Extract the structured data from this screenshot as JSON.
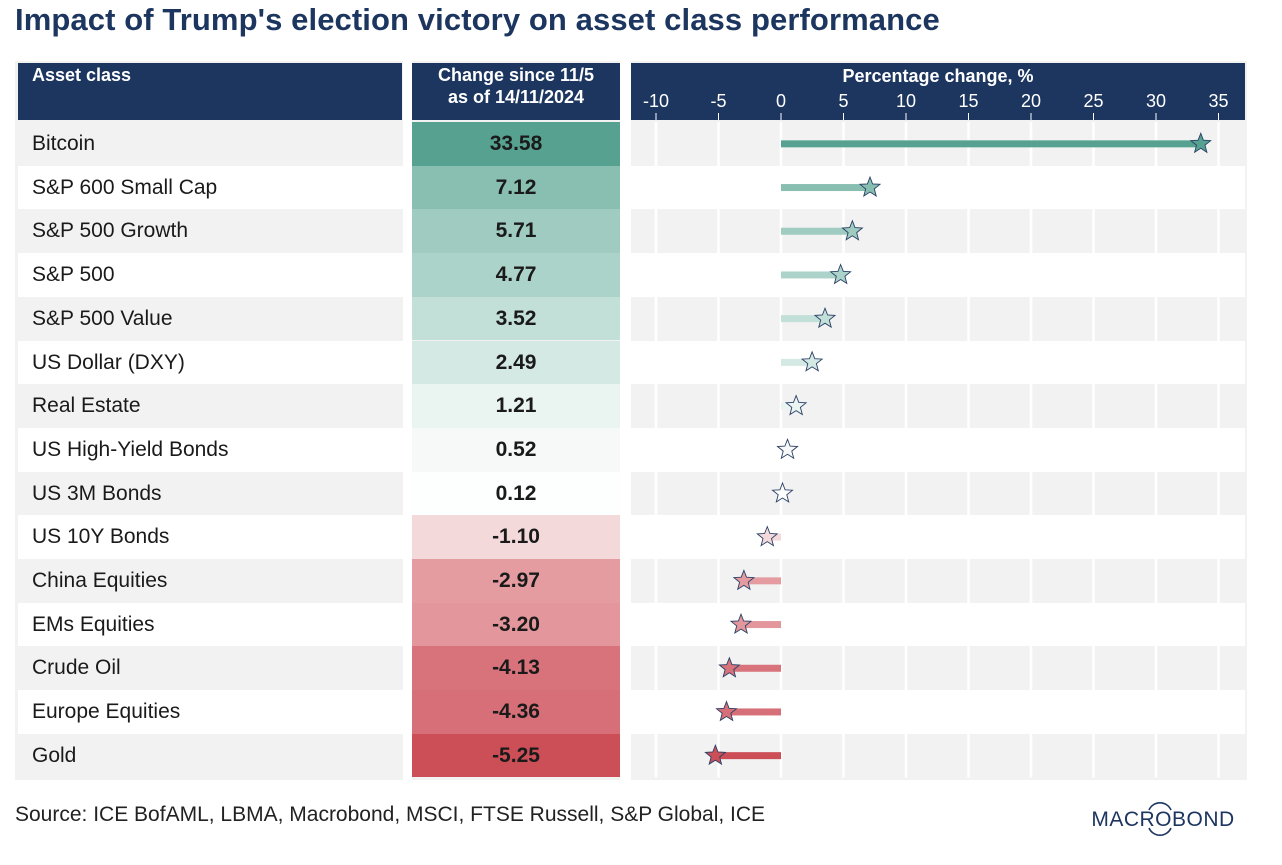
{
  "title": "Impact of Trump's election victory on asset class performance",
  "header": {
    "asset_col": "Asset class",
    "change_col_line1": "Change since 11/5",
    "change_col_line2": "as of 14/11/2024",
    "chart_col": "Percentage change, %"
  },
  "source": "Source: ICE BofAML, LBMA, Macrobond, MSCI, FTSE Russell, S&P Global, ICE",
  "logo": "MACROBOND",
  "colors": {
    "navy": "#1c3660",
    "positive_strong": "#57a190",
    "negative_strong": "#cc4f58"
  },
  "chart_data": {
    "type": "bar",
    "title": "Percentage change, %",
    "xlabel": "Percentage change, %",
    "ylabel": "Asset class",
    "xlim": [
      -12,
      37
    ],
    "xticks": [
      -10,
      -5,
      0,
      5,
      10,
      15,
      20,
      25,
      30,
      35
    ],
    "grid": true,
    "orientation": "horizontal",
    "marker": "star",
    "categories": [
      "Bitcoin",
      "S&P 600 Small Cap",
      "S&P 500 Growth",
      "S&P 500",
      "S&P 500 Value",
      "US Dollar (DXY)",
      "Real Estate",
      "US High-Yield Bonds",
      "US 3M Bonds",
      "US 10Y Bonds",
      "China Equities",
      "EMs Equities",
      "Crude Oil",
      "Europe Equities",
      "Gold"
    ],
    "values": [
      33.58,
      7.12,
      5.71,
      4.77,
      3.52,
      2.49,
      1.21,
      0.52,
      0.12,
      -1.1,
      -2.97,
      -3.2,
      -4.13,
      -4.36,
      -5.25
    ],
    "labels": [
      "33.58",
      "7.12",
      "5.71",
      "4.77",
      "3.52",
      "2.49",
      "1.21",
      "0.52",
      "0.12",
      "-1.10",
      "-2.97",
      "-3.20",
      "-4.13",
      "-4.36",
      "-5.25"
    ],
    "fill_colors": [
      "#57a190",
      "#88bfb1",
      "#9fcbc0",
      "#acd3c9",
      "#c3e0d8",
      "#d5e9e4",
      "#eaf4f1",
      "#f6f9f8",
      "#fdfefe",
      "#f4d9db",
      "#e49ca1",
      "#e3979c",
      "#d8727b",
      "#d76f78",
      "#cc4f58"
    ]
  }
}
